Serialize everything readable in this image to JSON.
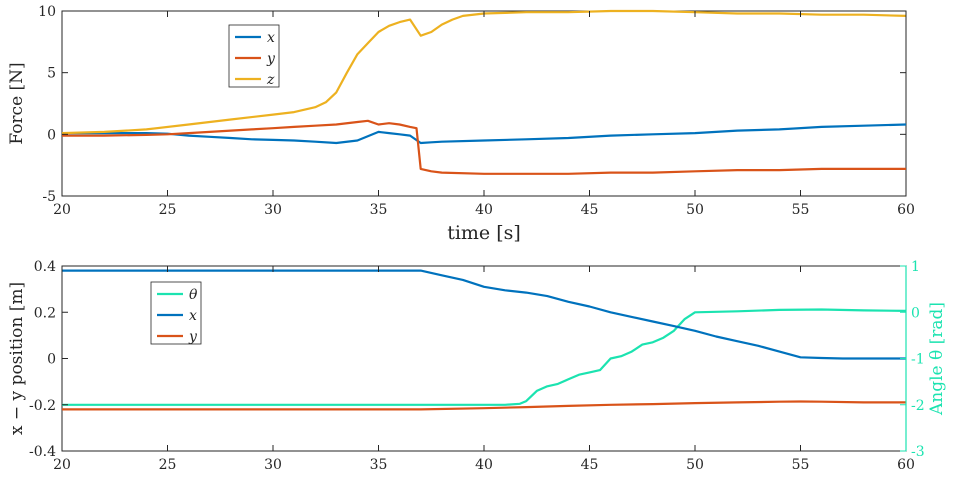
{
  "chart_data": [
    {
      "type": "line",
      "title": "",
      "xlabel": "time [s]",
      "ylabel": "Force [N]",
      "xlim": [
        20,
        60
      ],
      "ylim": [
        -5,
        10
      ],
      "xticks": [
        20,
        25,
        30,
        35,
        40,
        45,
        50,
        55,
        60
      ],
      "yticks": [
        -5,
        0,
        5,
        10
      ],
      "grid": false,
      "legend": "top-left",
      "series": [
        {
          "name": "x",
          "color": "#0072BD",
          "x": [
            20,
            22,
            24,
            25,
            26,
            27,
            28,
            29,
            30,
            31,
            32,
            33,
            34,
            35,
            35.5,
            36,
            36.5,
            37,
            37.5,
            38,
            40,
            42,
            44,
            46,
            48,
            50,
            52,
            54,
            56,
            58,
            60
          ],
          "y": [
            0.1,
            0.1,
            0.1,
            0.05,
            -0.1,
            -0.2,
            -0.3,
            -0.4,
            -0.45,
            -0.5,
            -0.6,
            -0.7,
            -0.5,
            0.2,
            0.1,
            0.0,
            -0.1,
            -0.7,
            -0.65,
            -0.6,
            -0.5,
            -0.4,
            -0.3,
            -0.1,
            0.0,
            0.1,
            0.3,
            0.4,
            0.6,
            0.7,
            0.8
          ]
        },
        {
          "name": "y",
          "color": "#D95319",
          "x": [
            20,
            22,
            24,
            25,
            26,
            27,
            28,
            29,
            30,
            31,
            32,
            33,
            34,
            34.5,
            35,
            35.5,
            36,
            36.5,
            36.8,
            37,
            37.5,
            38,
            40,
            42,
            44,
            46,
            48,
            50,
            52,
            54,
            56,
            58,
            60
          ],
          "y": [
            -0.1,
            -0.1,
            -0.05,
            0.0,
            0.1,
            0.2,
            0.3,
            0.4,
            0.5,
            0.6,
            0.7,
            0.8,
            1.0,
            1.1,
            0.8,
            0.9,
            0.8,
            0.6,
            0.5,
            -2.8,
            -3.0,
            -3.1,
            -3.2,
            -3.2,
            -3.2,
            -3.1,
            -3.1,
            -3.0,
            -2.9,
            -2.9,
            -2.8,
            -2.8,
            -2.8
          ]
        },
        {
          "name": "z",
          "color": "#EDB120",
          "x": [
            20,
            22,
            24,
            26,
            28,
            30,
            31,
            32,
            32.5,
            33,
            33.5,
            34,
            34.5,
            35,
            35.5,
            36,
            36.5,
            37,
            37.5,
            38,
            38.5,
            39,
            40,
            42,
            44,
            46,
            48,
            50,
            52,
            54,
            56,
            58,
            60
          ],
          "y": [
            0.1,
            0.2,
            0.4,
            0.8,
            1.2,
            1.6,
            1.8,
            2.2,
            2.6,
            3.4,
            5.0,
            6.5,
            7.4,
            8.3,
            8.8,
            9.1,
            9.3,
            8.0,
            8.3,
            8.9,
            9.3,
            9.6,
            9.8,
            9.9,
            9.9,
            10.0,
            10.0,
            9.9,
            9.8,
            9.8,
            9.7,
            9.7,
            9.6
          ]
        }
      ]
    },
    {
      "type": "line",
      "title": "",
      "xlabel": "",
      "ylabel": "x − y position [m]",
      "y2label": "Angle θ [rad]",
      "xlim": [
        20,
        60
      ],
      "ylim": [
        -0.4,
        0.4
      ],
      "y2lim": [
        -3,
        1
      ],
      "xticks": [
        20,
        25,
        30,
        35,
        40,
        45,
        50,
        55,
        60
      ],
      "yticks": [
        -0.4,
        -0.2,
        0,
        0.2,
        0.4
      ],
      "y2ticks": [
        -3,
        -2,
        -1,
        0,
        1
      ],
      "grid": false,
      "legend": "top-left",
      "series": [
        {
          "name": "θ",
          "axis": "right",
          "color": "#1BE3B0",
          "x": [
            20,
            30,
            40,
            41,
            41.7,
            42,
            42.5,
            43,
            43.5,
            44,
            44.5,
            45,
            45.5,
            46,
            46.5,
            47,
            47.5,
            48,
            48.5,
            49,
            49.5,
            50,
            52,
            54,
            56,
            58,
            60
          ],
          "y": [
            -2.0,
            -2.0,
            -2.0,
            -2.0,
            -1.98,
            -1.92,
            -1.7,
            -1.6,
            -1.55,
            -1.45,
            -1.35,
            -1.3,
            -1.25,
            -1.0,
            -0.95,
            -0.85,
            -0.7,
            -0.65,
            -0.55,
            -0.4,
            -0.15,
            0.0,
            0.02,
            0.05,
            0.06,
            0.04,
            0.03
          ]
        },
        {
          "name": "x",
          "axis": "left",
          "color": "#0072BD",
          "x": [
            20,
            25,
            30,
            35,
            37,
            38,
            39,
            40,
            41,
            42,
            43,
            44,
            45,
            46,
            47,
            48,
            49,
            50,
            51,
            52,
            53,
            54,
            55,
            56,
            57,
            58,
            59,
            60
          ],
          "y": [
            0.38,
            0.38,
            0.38,
            0.38,
            0.38,
            0.36,
            0.34,
            0.31,
            0.295,
            0.285,
            0.27,
            0.245,
            0.225,
            0.2,
            0.18,
            0.16,
            0.14,
            0.12,
            0.095,
            0.075,
            0.055,
            0.03,
            0.005,
            0.002,
            0.0,
            0.0,
            0.0,
            0.0
          ]
        },
        {
          "name": "y",
          "axis": "left",
          "color": "#D95319",
          "x": [
            20,
            25,
            30,
            35,
            37,
            40,
            42,
            44,
            46,
            48,
            50,
            52,
            54,
            55,
            56,
            58,
            60
          ],
          "y": [
            -0.22,
            -0.22,
            -0.22,
            -0.22,
            -0.22,
            -0.215,
            -0.21,
            -0.205,
            -0.2,
            -0.197,
            -0.193,
            -0.19,
            -0.187,
            -0.186,
            -0.187,
            -0.19,
            -0.19
          ]
        }
      ]
    }
  ]
}
